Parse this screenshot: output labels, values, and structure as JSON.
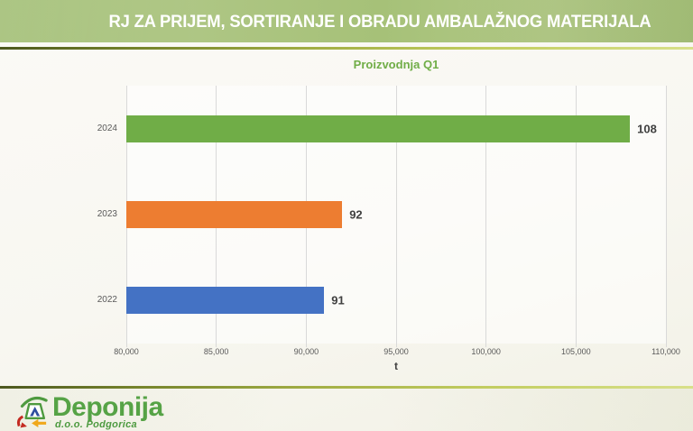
{
  "header": {
    "title": "RJ ZA PRIJEM, SORTIRANJE I OBRADU AMBALAŽNOG MATERIJALA"
  },
  "chart_data": {
    "type": "bar",
    "orientation": "horizontal",
    "title": "Proizvodnja Q1",
    "categories": [
      "2024",
      "2023",
      "2022"
    ],
    "values": [
      108000,
      92000,
      91000
    ],
    "value_labels": [
      "108",
      "92",
      "91"
    ],
    "series_colors": [
      "#70AD47",
      "#ED7D31",
      "#4472C4"
    ],
    "xlabel": "t",
    "xlim": [
      80000,
      110000
    ],
    "x_ticks": [
      80000,
      85000,
      90000,
      95000,
      100000,
      105000,
      110000
    ],
    "x_tick_labels": [
      "80,000",
      "85,000",
      "90,000",
      "95,000",
      "100,000",
      "105,000",
      "110,000"
    ],
    "grid": true,
    "legend": "none"
  },
  "footer": {
    "brand": "Deponija",
    "subtitle": "d.o.o. Podgorica"
  },
  "colors": {
    "header_band": "#A9C47F",
    "title_green": "#70AD47",
    "gridline": "#D9D9D9",
    "tick_label_gray": "#595959",
    "data_label_gray": "#404040",
    "brand_green": "#56A346"
  }
}
